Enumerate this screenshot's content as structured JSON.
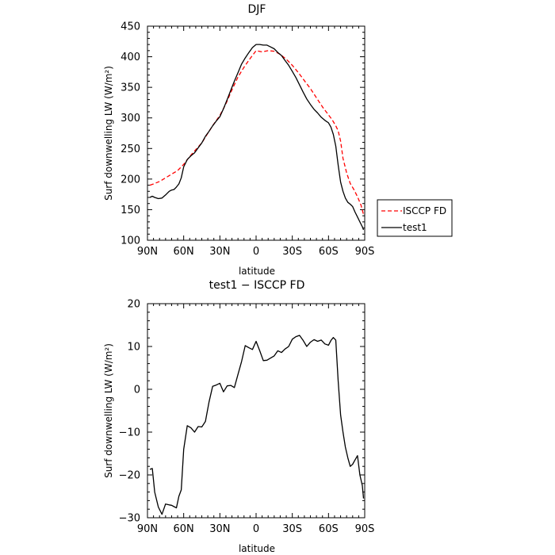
{
  "chart_data": [
    {
      "type": "line",
      "title": "DJF",
      "xlabel": "latitude",
      "ylabel": "Surf downwelling LW (W/m²)",
      "xlim": [
        90,
        -90
      ],
      "ylim": [
        100,
        450
      ],
      "x_ticks": [
        90,
        60,
        30,
        0,
        -30,
        -60,
        -90
      ],
      "x_tick_labels": [
        "90N",
        "60N",
        "30N",
        "0",
        "30S",
        "60S",
        "90S"
      ],
      "y_ticks": [
        100,
        150,
        200,
        250,
        300,
        350,
        400,
        450
      ],
      "y_tick_labels": [
        "100",
        "150",
        "200",
        "250",
        "300",
        "350",
        "400",
        "450"
      ],
      "legend": "outside right",
      "grid": false,
      "series": [
        {
          "name": "ISCCP FD",
          "color": "#ff0000",
          "style": "dashed",
          "x": [
            88,
            85,
            80,
            75,
            70,
            65,
            60,
            55,
            50,
            45,
            40,
            35,
            30,
            25,
            20,
            15,
            10,
            5,
            0,
            -5,
            -10,
            -15,
            -20,
            -25,
            -30,
            -35,
            -40,
            -45,
            -50,
            -55,
            -60,
            -63,
            -66,
            -68,
            -70,
            -72,
            -75,
            -78,
            -81,
            -84,
            -87,
            -89
          ],
          "y": [
            190,
            192,
            196,
            202,
            208,
            214,
            224,
            237,
            248,
            259,
            275,
            290,
            304,
            323,
            346,
            367,
            383,
            397,
            410,
            408,
            410,
            409,
            404,
            396,
            386,
            374,
            361,
            348,
            333,
            318,
            305,
            297,
            287,
            279,
            262,
            234,
            210,
            193,
            183,
            171,
            157,
            142
          ]
        },
        {
          "name": "test1",
          "color": "#000000",
          "style": "solid",
          "x": [
            88,
            86,
            84,
            81,
            78,
            75,
            72,
            70,
            68,
            66,
            64,
            62,
            60,
            57,
            54,
            51,
            48,
            45,
            42,
            39,
            36,
            33,
            30,
            27,
            24,
            21,
            18,
            15,
            12,
            9,
            6,
            3,
            0,
            -3,
            -6,
            -9,
            -12,
            -15,
            -18,
            -21,
            -24,
            -27,
            -30,
            -33,
            -36,
            -39,
            -42,
            -45,
            -48,
            -51,
            -54,
            -57,
            -60,
            -62,
            -64,
            -66,
            -68,
            -70,
            -72,
            -74,
            -76,
            -78,
            -80,
            -82,
            -84,
            -86,
            -88,
            -89
          ],
          "y": [
            170,
            172,
            170,
            168,
            169,
            174,
            180,
            182,
            183,
            187,
            192,
            202,
            220,
            232,
            238,
            243,
            251,
            259,
            270,
            278,
            287,
            295,
            302,
            315,
            330,
            345,
            360,
            374,
            388,
            398,
            407,
            415,
            420,
            420,
            419,
            419,
            416,
            413,
            407,
            402,
            394,
            386,
            376,
            366,
            354,
            342,
            331,
            322,
            314,
            308,
            301,
            296,
            292,
            285,
            273,
            254,
            223,
            195,
            180,
            169,
            162,
            159,
            155,
            146,
            138,
            130,
            122,
            117
          ]
        }
      ]
    },
    {
      "type": "line",
      "title": "test1 − ISCCP FD",
      "xlabel": "latitude",
      "ylabel": "Surf downwelling LW (W/m²)",
      "xlim": [
        90,
        -90
      ],
      "ylim": [
        -30,
        20
      ],
      "x_ticks": [
        90,
        60,
        30,
        0,
        -30,
        -60,
        -90
      ],
      "x_tick_labels": [
        "90N",
        "60N",
        "30N",
        "0",
        "30S",
        "60S",
        "90S"
      ],
      "y_ticks": [
        -30,
        -20,
        -10,
        0,
        10,
        20
      ],
      "y_tick_labels": [
        "−30",
        "−20",
        "−10",
        "0",
        "10",
        "20"
      ],
      "grid": false,
      "series": [
        {
          "color": "#000000",
          "style": "solid",
          "x": [
            88,
            86,
            84,
            81,
            78,
            75,
            72,
            70,
            68,
            66,
            64,
            62,
            60,
            57,
            54,
            51,
            48,
            45,
            42,
            39,
            36,
            33,
            30,
            27,
            24,
            21,
            18,
            15,
            12,
            9,
            6,
            3,
            0,
            -3,
            -6,
            -9,
            -12,
            -15,
            -18,
            -21,
            -24,
            -27,
            -30,
            -33,
            -36,
            -39,
            -42,
            -45,
            -48,
            -51,
            -54,
            -57,
            -60,
            -62,
            -64,
            -66,
            -68,
            -70,
            -72,
            -74,
            -76,
            -78,
            -80,
            -82,
            -84,
            -86,
            -88,
            -89
          ],
          "y": [
            -18.7,
            -18.5,
            -24,
            -27.5,
            -29.2,
            -26.8,
            -27,
            -27.1,
            -27.4,
            -27.7,
            -25,
            -23.5,
            -14,
            -8.5,
            -9,
            -10,
            -8.7,
            -8.8,
            -7.5,
            -3,
            0.7,
            1,
            1.4,
            -0.6,
            0.8,
            0.9,
            0.4,
            3.5,
            6.5,
            10.2,
            9.7,
            9.3,
            11.2,
            9,
            6.7,
            6.8,
            7.3,
            7.8,
            9,
            8.6,
            9.4,
            10,
            11.7,
            12.3,
            12.6,
            11.4,
            10,
            11,
            11.6,
            11.2,
            11.5,
            10.6,
            10.3,
            11.4,
            12.1,
            11.5,
            2,
            -6,
            -10,
            -13.5,
            -16,
            -18,
            -17.5,
            -16.5,
            -15.5,
            -20,
            -22.5,
            -25.5
          ]
        }
      ]
    }
  ]
}
